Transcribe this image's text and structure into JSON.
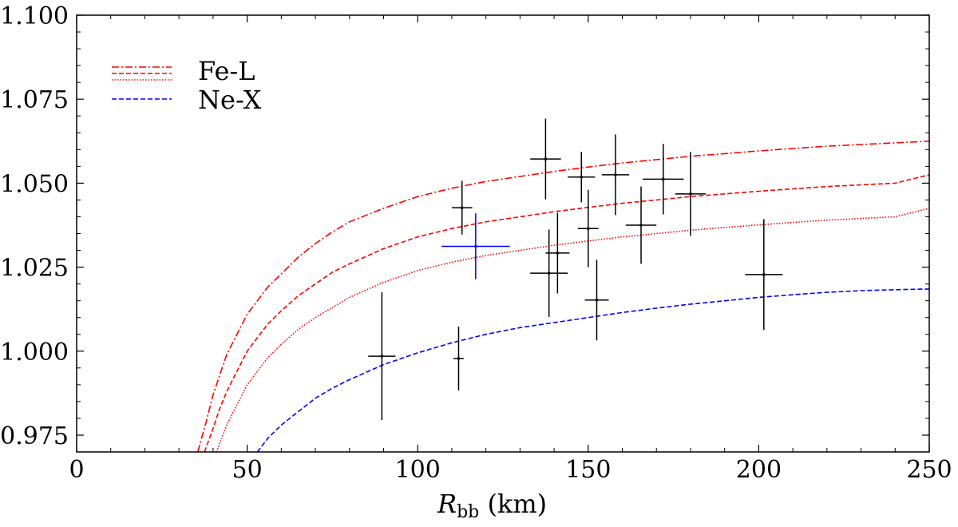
{
  "chart_data": {
    "type": "scatter",
    "title": "",
    "xlabel_main": "R",
    "xlabel_sub": "bb",
    "xlabel_unit": " (km)",
    "ylabel": "",
    "xlim": [
      0,
      250
    ],
    "ylim": [
      0.97,
      1.1
    ],
    "grid": false,
    "legend_position": "top-left",
    "x_ticks": [
      0,
      50,
      100,
      150,
      200,
      250
    ],
    "x_tick_labels": [
      "0",
      "50",
      "100",
      "150",
      "200",
      "250"
    ],
    "y_ticks": [
      0.975,
      1.0,
      1.025,
      1.05,
      1.075,
      1.1
    ],
    "y_tick_labels": [
      "0.975",
      "1.000",
      "1.025",
      "1.050",
      "1.075",
      "1.100"
    ],
    "legend": [
      {
        "label": "Fe-L",
        "series": [
          "fe-l-dashdot",
          "fe-l-dashed",
          "fe-l-dotted"
        ]
      },
      {
        "label": "Ne-X",
        "series": [
          "ne-x-dashed"
        ]
      }
    ],
    "series": [
      {
        "name": "fe-l-dashdot",
        "color": "#ff0000",
        "style": "dashdot",
        "x": [
          35.5,
          38,
          40,
          42,
          44,
          46,
          48,
          50,
          53,
          56,
          60,
          65,
          70,
          75,
          80,
          90,
          100,
          110,
          120,
          130,
          140,
          150,
          160,
          170,
          180,
          190,
          200,
          210,
          220,
          230,
          240,
          250
        ],
        "y": [
          0.97,
          0.979,
          0.987,
          0.993,
          0.999,
          1.003,
          1.007,
          1.011,
          1.015,
          1.019,
          1.023,
          1.028,
          1.032,
          1.0355,
          1.0385,
          1.0425,
          1.046,
          1.0485,
          1.0505,
          1.052,
          1.0535,
          1.0548,
          1.056,
          1.057,
          1.058,
          1.0588,
          1.0596,
          1.0603,
          1.061,
          1.0615,
          1.062,
          1.0625
        ]
      },
      {
        "name": "fe-l-dashed",
        "color": "#ff0000",
        "style": "dashed",
        "x": [
          37.5,
          40,
          42,
          44,
          46,
          48,
          50,
          53,
          56,
          60,
          65,
          70,
          75,
          80,
          90,
          100,
          110,
          120,
          130,
          140,
          150,
          160,
          170,
          180,
          190,
          200,
          210,
          220,
          230,
          240,
          250
        ],
        "y": [
          0.97,
          0.977,
          0.983,
          0.988,
          0.992,
          0.996,
          1.0,
          1.004,
          1.008,
          1.012,
          1.0165,
          1.02,
          1.0235,
          1.026,
          1.0305,
          1.034,
          1.0365,
          1.0385,
          1.04,
          1.0415,
          1.0428,
          1.044,
          1.045,
          1.046,
          1.0468,
          1.0476,
          1.0483,
          1.049,
          1.0495,
          1.05,
          1.0525
        ]
      },
      {
        "name": "fe-l-dotted",
        "color": "#ff0000",
        "style": "dotted",
        "x": [
          41,
          44,
          46,
          48,
          50,
          53,
          56,
          60,
          65,
          70,
          75,
          80,
          90,
          100,
          110,
          120,
          130,
          140,
          150,
          160,
          170,
          180,
          190,
          200,
          210,
          220,
          230,
          240,
          250
        ],
        "y": [
          0.97,
          0.978,
          0.982,
          0.986,
          0.99,
          0.994,
          0.998,
          1.002,
          1.0065,
          1.01,
          1.013,
          1.016,
          1.0205,
          1.024,
          1.0265,
          1.0285,
          1.03,
          1.0315,
          1.0328,
          1.034,
          1.035,
          1.036,
          1.0368,
          1.0376,
          1.0383,
          1.039,
          1.0395,
          1.04,
          1.0425
        ]
      },
      {
        "name": "ne-x-dashed",
        "color": "#0000ff",
        "style": "dashed",
        "x": [
          53,
          56,
          60,
          65,
          70,
          75,
          80,
          90,
          100,
          110,
          120,
          130,
          140,
          150,
          160,
          170,
          180,
          190,
          200,
          210,
          220,
          230,
          240,
          250
        ],
        "y": [
          0.97,
          0.974,
          0.978,
          0.982,
          0.986,
          0.989,
          0.9915,
          0.996,
          0.9995,
          1.0025,
          1.005,
          1.007,
          1.0085,
          1.01,
          1.0115,
          1.0128,
          1.014,
          1.015,
          1.016,
          1.0168,
          1.0175,
          1.018,
          1.0183,
          1.0185
        ]
      }
    ],
    "points": [
      {
        "x": 89.5,
        "y": 0.9985,
        "xerr": 4,
        "yerr_lo": 0.019,
        "yerr_hi": 0.019,
        "color": "#000000"
      },
      {
        "x": 112,
        "y": 0.9978,
        "xerr": 1.5,
        "yerr_lo": 0.0095,
        "yerr_hi": 0.0095,
        "color": "#000000"
      },
      {
        "x": 113,
        "y": 1.0427,
        "xerr": 3,
        "yerr_lo": 0.008,
        "yerr_hi": 0.008,
        "color": "#000000"
      },
      {
        "x": 117,
        "y": 1.0312,
        "xerr": 10,
        "yerr_lo": 0.0098,
        "yerr_hi": 0.0098,
        "color": "#0000ff"
      },
      {
        "x": 137.5,
        "y": 1.0572,
        "xerr": 4.5,
        "yerr_lo": 0.012,
        "yerr_hi": 0.012,
        "color": "#000000"
      },
      {
        "x": 138.5,
        "y": 1.0232,
        "xerr": 5.5,
        "yerr_lo": 0.013,
        "yerr_hi": 0.013,
        "color": "#000000"
      },
      {
        "x": 141,
        "y": 1.0292,
        "xerr": 3.5,
        "yerr_lo": 0.012,
        "yerr_hi": 0.012,
        "color": "#000000"
      },
      {
        "x": 148,
        "y": 1.0518,
        "xerr": 4,
        "yerr_lo": 0.0075,
        "yerr_hi": 0.0075,
        "color": "#000000"
      },
      {
        "x": 150,
        "y": 1.0365,
        "xerr": 3,
        "yerr_lo": 0.0115,
        "yerr_hi": 0.0115,
        "color": "#000000"
      },
      {
        "x": 152.5,
        "y": 1.0152,
        "xerr": 3.5,
        "yerr_lo": 0.012,
        "yerr_hi": 0.012,
        "color": "#000000"
      },
      {
        "x": 158,
        "y": 1.0525,
        "xerr": 4,
        "yerr_lo": 0.012,
        "yerr_hi": 0.012,
        "color": "#000000"
      },
      {
        "x": 165.5,
        "y": 1.0375,
        "xerr": 4.5,
        "yerr_lo": 0.0115,
        "yerr_hi": 0.0115,
        "color": "#000000"
      },
      {
        "x": 172,
        "y": 1.0512,
        "xerr": 6,
        "yerr_lo": 0.0105,
        "yerr_hi": 0.0105,
        "color": "#000000"
      },
      {
        "x": 180,
        "y": 1.0468,
        "xerr": 4.5,
        "yerr_lo": 0.0125,
        "yerr_hi": 0.0125,
        "color": "#000000"
      },
      {
        "x": 201.5,
        "y": 1.0228,
        "xerr": 5.5,
        "yerr_lo": 0.0165,
        "yerr_hi": 0.0165,
        "color": "#000000"
      }
    ]
  }
}
